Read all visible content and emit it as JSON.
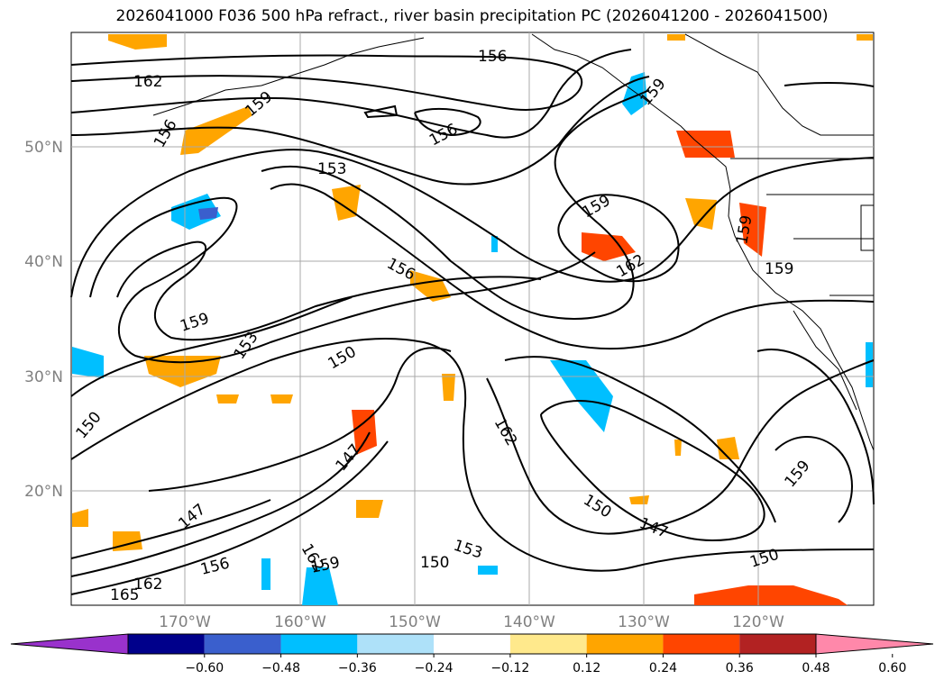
{
  "title": "2026041000 F036 500 hPa refract., river basin precipitation PC (2026041200 - 2026041500)",
  "lat_labels": [
    "50°N",
    "40°N",
    "30°N",
    "20°N"
  ],
  "lon_labels": [
    "170°W",
    "160°W",
    "150°W",
    "140°W",
    "130°W",
    "120°W"
  ],
  "contour_labels": [
    "162",
    "156",
    "156",
    "159",
    "156",
    "153",
    "159",
    "159",
    "159",
    "162",
    "159",
    "156",
    "159",
    "153",
    "150",
    "150",
    "147",
    "162",
    "150",
    "147",
    "150",
    "153",
    "150",
    "159",
    "147",
    "162",
    "156",
    "165",
    "162",
    "159"
  ],
  "colorbar": {
    "colors": [
      "#9932cc",
      "#00008b",
      "#3a5fcd",
      "#00bfff",
      "#aee1f9",
      "#ffffff",
      "#ffe98c",
      "#ffa500",
      "#ff4500",
      "#b22222",
      "#ff88aa"
    ],
    "tick_labels": [
      "−0.60",
      "−0.48",
      "−0.36",
      "−0.24",
      "−0.12",
      "0.12",
      "0.24",
      "0.36",
      "0.48",
      "0.60"
    ]
  }
}
